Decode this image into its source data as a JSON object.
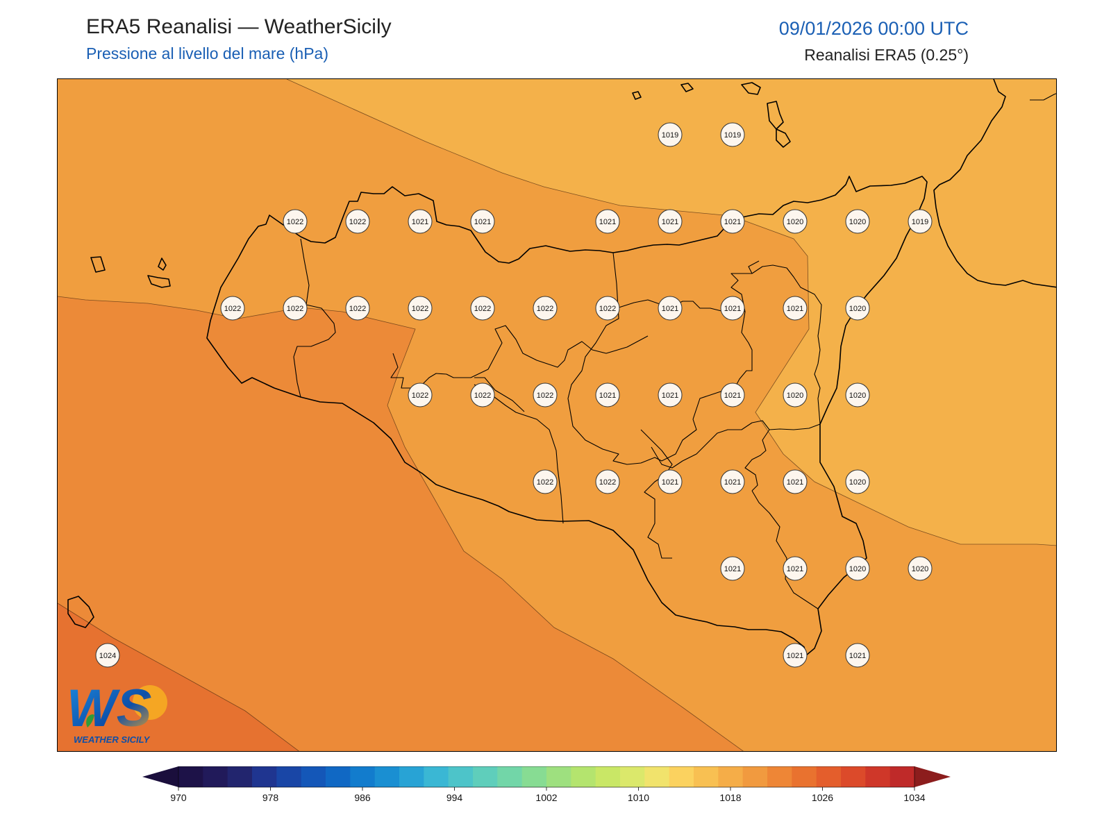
{
  "header": {
    "title": "ERA5 Reanalisi — WeatherSicily",
    "subtitle": "Pressione al livello del mare (hPa)",
    "datetime": "09/01/2026 00:00 UTC",
    "source": "Reanalisi ERA5 (0.25°)"
  },
  "logo": {
    "mark": "WS",
    "wordmark": "WEATHER SICILY"
  },
  "colors": {
    "band_1018": "#f4b14a",
    "band_1020": "#f09e3f",
    "band_1022": "#ec8a38",
    "band_1024": "#e67230",
    "station_fill": "#fdf6ee",
    "coast": "#000000"
  },
  "colorbar": {
    "ticks": [
      "970",
      "978",
      "986",
      "994",
      "1002",
      "1010",
      "1018",
      "1026",
      "1034"
    ],
    "colors": [
      "#1d1248",
      "#211a5a",
      "#22256e",
      "#1f3590",
      "#1946a6",
      "#1457b8",
      "#1068c4",
      "#127ccd",
      "#1a8fd2",
      "#28a3d5",
      "#3ab7d4",
      "#4dc4c9",
      "#5fcebb",
      "#72d6a8",
      "#87dc93",
      "#9ee07f",
      "#b4e46e",
      "#c9e766",
      "#dbe86b",
      "#f1e36c",
      "#fbd25f",
      "#f8c052",
      "#f5ad48",
      "#f19a3f",
      "#ee8636",
      "#e9722f",
      "#e45e2c",
      "#dc4a2a",
      "#cf3729",
      "#bf2a29"
    ],
    "under_color": "#1a0e3c",
    "over_color": "#8c1d1d"
  },
  "stations": [
    {
      "value": "1019",
      "lon": 15.5,
      "lat": 38.5
    },
    {
      "value": "1019",
      "lon": 16.0,
      "lat": 38.5
    },
    {
      "value": "1022",
      "lon": 12.5,
      "lat": 37.875
    },
    {
      "value": "1022",
      "lon": 13.0,
      "lat": 37.875
    },
    {
      "value": "1021",
      "lon": 13.5,
      "lat": 37.875
    },
    {
      "value": "1021",
      "lon": 14.0,
      "lat": 37.875
    },
    {
      "value": "1021",
      "lon": 15.0,
      "lat": 37.875
    },
    {
      "value": "1021",
      "lon": 15.5,
      "lat": 37.875
    },
    {
      "value": "1021",
      "lon": 16.0,
      "lat": 37.875
    },
    {
      "value": "1020",
      "lon": 16.5,
      "lat": 37.875
    },
    {
      "value": "1020",
      "lon": 17.0,
      "lat": 37.875
    },
    {
      "value": "1019",
      "lon": 17.5,
      "lat": 37.875
    },
    {
      "value": "1022",
      "lon": 12.0,
      "lat": 37.25
    },
    {
      "value": "1022",
      "lon": 12.5,
      "lat": 37.25
    },
    {
      "value": "1022",
      "lon": 13.0,
      "lat": 37.25
    },
    {
      "value": "1022",
      "lon": 13.5,
      "lat": 37.25
    },
    {
      "value": "1022",
      "lon": 14.0,
      "lat": 37.25
    },
    {
      "value": "1022",
      "lon": 14.5,
      "lat": 37.25
    },
    {
      "value": "1022",
      "lon": 15.0,
      "lat": 37.25
    },
    {
      "value": "1021",
      "lon": 15.5,
      "lat": 37.25
    },
    {
      "value": "1021",
      "lon": 16.0,
      "lat": 37.25
    },
    {
      "value": "1021",
      "lon": 16.5,
      "lat": 37.25
    },
    {
      "value": "1020",
      "lon": 17.0,
      "lat": 37.25
    },
    {
      "value": "1022",
      "lon": 13.5,
      "lat": 36.625
    },
    {
      "value": "1022",
      "lon": 14.0,
      "lat": 36.625
    },
    {
      "value": "1022",
      "lon": 14.5,
      "lat": 36.625
    },
    {
      "value": "1021",
      "lon": 15.0,
      "lat": 36.625
    },
    {
      "value": "1021",
      "lon": 15.5,
      "lat": 36.625
    },
    {
      "value": "1021",
      "lon": 16.0,
      "lat": 36.625
    },
    {
      "value": "1020",
      "lon": 16.5,
      "lat": 36.625
    },
    {
      "value": "1020",
      "lon": 17.0,
      "lat": 36.625
    },
    {
      "value": "1022",
      "lon": 14.5,
      "lat": 36.0
    },
    {
      "value": "1022",
      "lon": 15.0,
      "lat": 36.0
    },
    {
      "value": "1021",
      "lon": 15.5,
      "lat": 36.0
    },
    {
      "value": "1021",
      "lon": 16.0,
      "lat": 36.0
    },
    {
      "value": "1021",
      "lon": 16.5,
      "lat": 36.0
    },
    {
      "value": "1020",
      "lon": 17.0,
      "lat": 36.0
    },
    {
      "value": "1021",
      "lon": 16.0,
      "lat": 35.375
    },
    {
      "value": "1021",
      "lon": 16.5,
      "lat": 35.375
    },
    {
      "value": "1020",
      "lon": 17.0,
      "lat": 35.375
    },
    {
      "value": "1020",
      "lon": 17.5,
      "lat": 35.375
    },
    {
      "value": "1024",
      "lon": 11.0,
      "lat": 34.75
    },
    {
      "value": "1021",
      "lon": 16.5,
      "lat": 34.75
    },
    {
      "value": "1021",
      "lon": 17.0,
      "lat": 34.75
    }
  ]
}
